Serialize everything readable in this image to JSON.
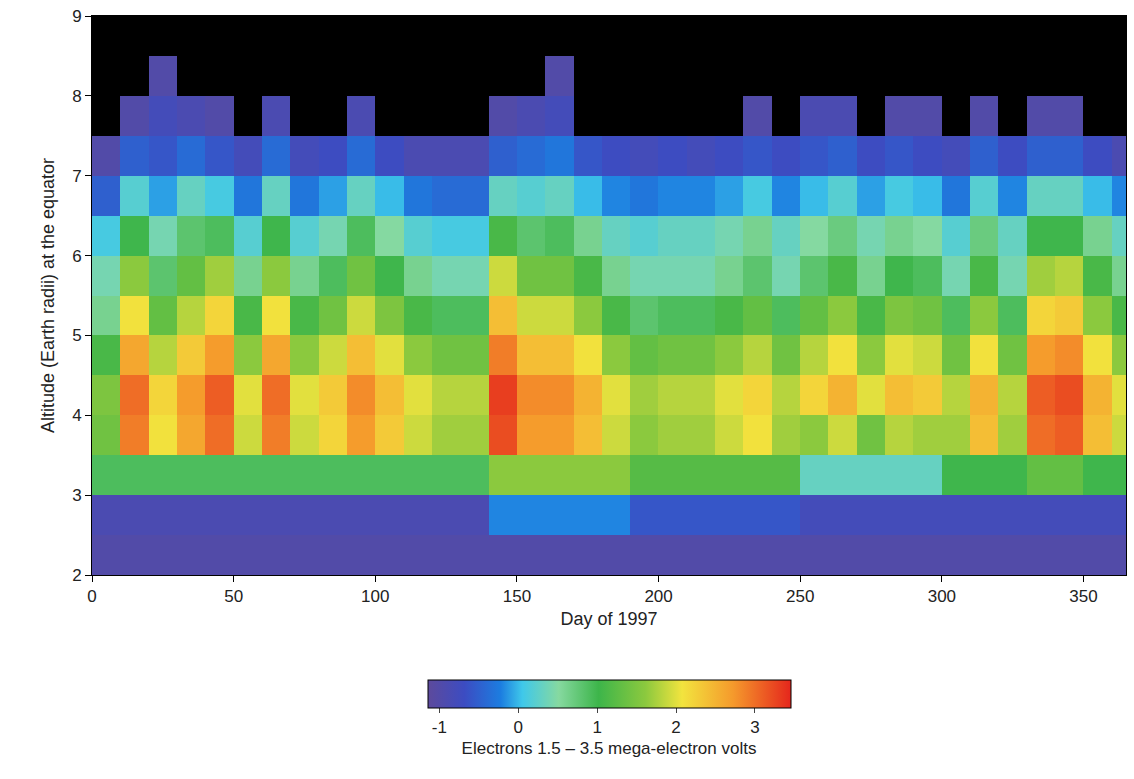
{
  "chart_data": {
    "type": "heatmap",
    "xlabel": "Day of 1997",
    "ylabel": "Altitude (Earth radii) at the equator",
    "x": [
      5,
      15,
      25,
      35,
      45,
      55,
      65,
      75,
      85,
      95,
      105,
      115,
      125,
      135,
      145,
      155,
      165,
      175,
      185,
      195,
      205,
      215,
      225,
      235,
      245,
      255,
      265,
      275,
      285,
      295,
      305,
      315,
      325,
      335,
      345,
      355,
      365
    ],
    "y": [
      2.25,
      2.75,
      3.25,
      3.75,
      4.25,
      4.75,
      5.25,
      5.75,
      6.25,
      6.75,
      7.25,
      7.75,
      8.25,
      8.75
    ],
    "z": [
      [
        -1.0,
        -1.0,
        -1.0,
        -1.0,
        -1.0,
        -1.0,
        -1.0,
        -1.0,
        -1.0,
        -1.0,
        -1.0,
        -1.0,
        -1.0,
        -1.0,
        -1.0,
        -1.0,
        -1.0,
        -1.0,
        -1.0,
        -1.0,
        -1.0,
        -1.0,
        -1.0,
        -1.0,
        -1.0,
        -1.0,
        -1.0,
        -1.0,
        -1.0,
        -1.0,
        -1.0,
        -1.0,
        -1.0,
        -1.0,
        -1.0,
        -1.0,
        -1.0
      ],
      [
        -0.9,
        -0.9,
        -0.9,
        -0.9,
        -0.9,
        -0.9,
        -0.9,
        -0.9,
        -0.9,
        -0.9,
        -0.9,
        -0.9,
        -0.9,
        -0.9,
        -0.2,
        -0.2,
        -0.2,
        -0.2,
        -0.2,
        -0.6,
        -0.6,
        -0.6,
        -0.6,
        -0.6,
        -0.6,
        -0.8,
        -0.8,
        -0.8,
        -0.8,
        -0.8,
        -0.8,
        -0.8,
        -0.8,
        -0.8,
        -0.8,
        -0.8,
        -0.8
      ],
      [
        0.9,
        0.9,
        0.9,
        0.9,
        0.9,
        0.9,
        0.9,
        0.9,
        0.9,
        0.9,
        0.9,
        0.9,
        0.9,
        0.9,
        1.6,
        1.6,
        1.6,
        1.6,
        1.6,
        1.2,
        1.2,
        1.2,
        1.2,
        1.2,
        1.2,
        0.3,
        0.3,
        0.3,
        0.3,
        0.3,
        1.0,
        1.0,
        1.0,
        1.3,
        1.3,
        1.0,
        1.0
      ],
      [
        1.4,
        2.9,
        2.1,
        2.6,
        3.0,
        1.9,
        2.9,
        1.9,
        2.2,
        2.7,
        2.3,
        1.9,
        1.7,
        1.7,
        3.2,
        2.7,
        2.7,
        2.4,
        1.9,
        1.6,
        1.7,
        1.7,
        1.9,
        2.1,
        1.7,
        1.6,
        1.9,
        1.4,
        1.8,
        1.7,
        1.7,
        2.4,
        1.7,
        3.0,
        3.1,
        2.4,
        1.9
      ],
      [
        1.5,
        3.0,
        2.2,
        2.7,
        3.1,
        2.0,
        3.0,
        2.0,
        2.3,
        2.8,
        2.4,
        2.0,
        1.8,
        1.8,
        3.3,
        2.8,
        2.8,
        2.5,
        2.0,
        1.7,
        1.8,
        1.8,
        2.0,
        2.2,
        1.8,
        2.2,
        2.5,
        2.0,
        2.4,
        2.3,
        1.8,
        2.5,
        1.8,
        3.1,
        3.2,
        2.5,
        2.0
      ],
      [
        1.1,
        2.6,
        1.8,
        2.3,
        2.7,
        1.6,
        2.6,
        1.6,
        1.9,
        2.4,
        2.0,
        1.6,
        1.4,
        1.4,
        2.9,
        2.4,
        2.4,
        2.1,
        1.6,
        1.3,
        1.4,
        1.4,
        1.6,
        1.8,
        1.4,
        1.8,
        2.1,
        1.6,
        2.0,
        1.9,
        1.4,
        2.1,
        1.4,
        2.7,
        2.8,
        2.1,
        1.6
      ],
      [
        0.6,
        2.1,
        1.3,
        1.8,
        2.2,
        1.1,
        2.1,
        1.1,
        1.4,
        1.9,
        1.5,
        1.1,
        0.9,
        0.9,
        2.4,
        1.9,
        1.9,
        1.6,
        1.1,
        0.8,
        0.9,
        0.9,
        1.1,
        1.3,
        0.9,
        1.3,
        1.6,
        1.1,
        1.5,
        1.4,
        0.9,
        1.6,
        0.9,
        2.2,
        2.3,
        1.6,
        1.1
      ],
      [
        0.4,
        1.6,
        0.8,
        1.3,
        1.7,
        0.6,
        1.6,
        0.6,
        0.9,
        1.4,
        1.0,
        0.6,
        0.4,
        0.4,
        1.9,
        1.4,
        1.4,
        1.1,
        0.6,
        0.4,
        0.4,
        0.4,
        0.6,
        0.8,
        0.4,
        0.8,
        1.1,
        0.6,
        1.0,
        0.9,
        0.4,
        1.1,
        0.4,
        1.7,
        1.8,
        1.1,
        0.6
      ],
      [
        0.1,
        1.0,
        0.4,
        0.8,
        0.9,
        0.2,
        1.0,
        0.2,
        0.4,
        0.9,
        0.5,
        0.2,
        0.1,
        0.1,
        1.1,
        0.8,
        0.9,
        0.6,
        0.3,
        0.2,
        0.3,
        0.3,
        0.4,
        0.6,
        0.3,
        0.5,
        0.7,
        0.4,
        0.6,
        0.5,
        0.2,
        0.7,
        0.3,
        1.0,
        1.0,
        0.6,
        0.3
      ],
      [
        -0.5,
        0.2,
        -0.1,
        0.3,
        0.1,
        -0.3,
        0.3,
        -0.3,
        -0.1,
        0.3,
        0.0,
        -0.3,
        -0.4,
        -0.4,
        0.3,
        0.2,
        0.3,
        0.0,
        -0.2,
        -0.3,
        -0.2,
        -0.2,
        -0.1,
        0.1,
        -0.2,
        0.0,
        0.2,
        -0.1,
        0.1,
        0.0,
        -0.3,
        0.2,
        -0.2,
        0.3,
        0.3,
        0.0,
        -0.2
      ],
      [
        -1.0,
        -0.5,
        -0.6,
        -0.4,
        -0.6,
        -0.8,
        -0.4,
        -0.8,
        -0.7,
        -0.4,
        -0.7,
        -0.9,
        -0.9,
        -0.9,
        -0.5,
        -0.4,
        -0.3,
        -0.6,
        -0.7,
        -0.8,
        -0.7,
        -0.8,
        -0.7,
        -0.6,
        -0.7,
        -0.6,
        -0.5,
        -0.7,
        -0.6,
        -0.7,
        -0.8,
        -0.5,
        -0.7,
        -0.5,
        -0.5,
        -0.7,
        -0.9
      ],
      [
        null,
        -1.0,
        -0.8,
        -0.9,
        -1.0,
        null,
        -0.9,
        null,
        null,
        -0.9,
        null,
        null,
        null,
        null,
        -1.0,
        -0.9,
        -0.8,
        null,
        null,
        null,
        null,
        null,
        null,
        -1.0,
        null,
        -0.9,
        -0.9,
        null,
        -1.0,
        -1.0,
        null,
        -1.0,
        null,
        -1.0,
        -1.0,
        null,
        null
      ],
      [
        null,
        null,
        -1.0,
        null,
        null,
        null,
        null,
        null,
        null,
        null,
        null,
        null,
        null,
        null,
        null,
        null,
        -1.0,
        null,
        null,
        null,
        null,
        null,
        null,
        null,
        null,
        null,
        null,
        null,
        null,
        null,
        null,
        null,
        null,
        null,
        null,
        null,
        null
      ],
      [
        null,
        null,
        null,
        null,
        null,
        null,
        null,
        null,
        null,
        null,
        null,
        null,
        null,
        null,
        null,
        null,
        null,
        null,
        null,
        null,
        null,
        null,
        null,
        null,
        null,
        null,
        null,
        null,
        null,
        null,
        null,
        null,
        null,
        null,
        null,
        null,
        null
      ]
    ],
    "xlim": [
      0,
      365
    ],
    "ylim": [
      2,
      9
    ],
    "xticks": [
      0,
      50,
      100,
      150,
      200,
      250,
      300,
      350
    ],
    "yticks": [
      2,
      3,
      4,
      5,
      6,
      7,
      8,
      9
    ],
    "colorbar": {
      "title": "Electrons 1.5 – 3.5 mega-electron volts",
      "range": [
        -1.15,
        3.45
      ],
      "ticks": [
        -1,
        0,
        1,
        2,
        3
      ]
    },
    "grid": false
  }
}
